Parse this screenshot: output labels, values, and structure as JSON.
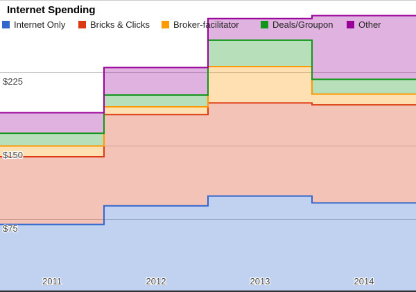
{
  "title": "Internet Spending",
  "legend": {
    "position": "top",
    "items": [
      {
        "label": "Internet Only",
        "color": "#3366cc"
      },
      {
        "label": "Bricks & Clicks",
        "color": "#dc3912"
      },
      {
        "label": "Broker-facilitator",
        "color": "#ff9900"
      },
      {
        "label": "Deals/Groupon",
        "color": "#109618"
      },
      {
        "label": "Other",
        "color": "#990099"
      }
    ]
  },
  "chart_data": {
    "type": "area",
    "variant": "stepped-stacked-area",
    "title": "Internet Spending",
    "categories": [
      "2011",
      "2012",
      "2013",
      "2014"
    ],
    "series": [
      {
        "name": "Internet Only",
        "color": "#3366cc",
        "values": [
          70,
          89,
          99,
          92
        ]
      },
      {
        "name": "Bricks & Clicks",
        "color": "#dc3912",
        "values": [
          69,
          93,
          95,
          100
        ]
      },
      {
        "name": "Broker-facilitator",
        "color": "#ff9900",
        "values": [
          11,
          8,
          37,
          11
        ]
      },
      {
        "name": "Deals/Groupon",
        "color": "#109618",
        "values": [
          13,
          12,
          27,
          15
        ]
      },
      {
        "name": "Other",
        "color": "#990099",
        "values": [
          21,
          28,
          22,
          65
        ]
      }
    ],
    "stacked_totals": [
      184,
      230,
      280,
      283
    ],
    "y_ticks": [
      {
        "label": "$75",
        "value": 75
      },
      {
        "label": "$150",
        "value": 150
      },
      {
        "label": "$225",
        "value": 225
      }
    ],
    "ylim": [
      0,
      299
    ],
    "grid": true,
    "legend_position": "top",
    "fill_opacity": 0.3
  }
}
